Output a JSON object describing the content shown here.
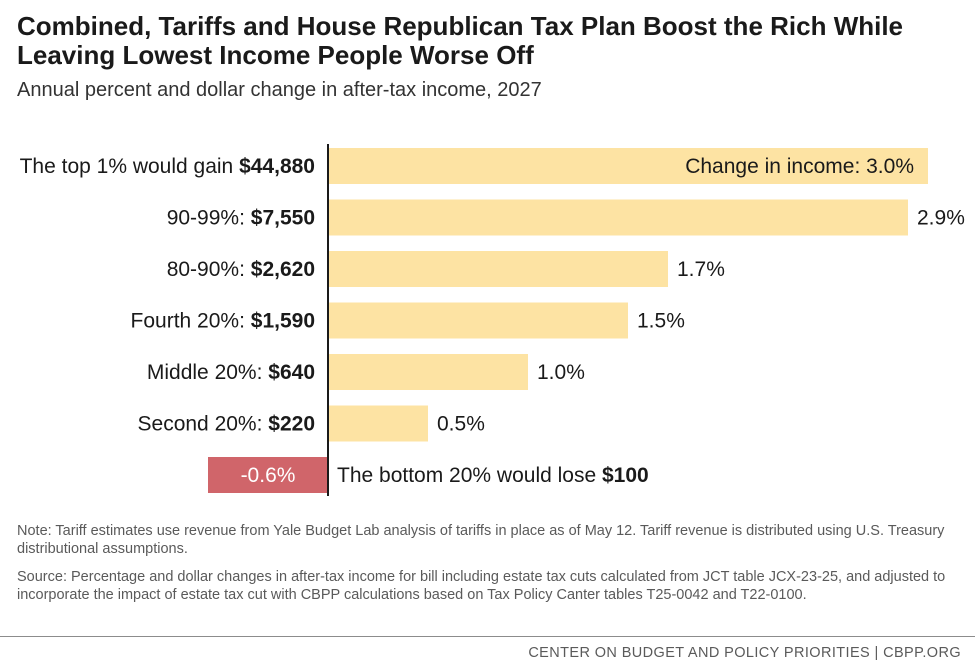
{
  "header": {
    "title": "Combined, Tariffs and House Republican Tax Plan Boost the Rich While Leaving Lowest Income People Worse Off",
    "subtitle": "Annual percent and dollar change in after-tax income, 2027"
  },
  "chart_data": {
    "type": "bar",
    "orientation": "horizontal",
    "title": "Combined, Tariffs and House Republican Tax Plan Boost the Rich While Leaving Lowest Income People Worse Off",
    "subtitle": "Annual percent and dollar change in after-tax income, 2027",
    "categories": [
      {
        "label_prefix": "The top 1% would gain ",
        "dollar": "$44,880",
        "label_position": "left"
      },
      {
        "label_prefix": "90-99%: ",
        "dollar": "$7,550",
        "label_position": "left"
      },
      {
        "label_prefix": "80-90%: ",
        "dollar": "$2,620",
        "label_position": "left"
      },
      {
        "label_prefix": "Fourth 20%: ",
        "dollar": "$1,590",
        "label_position": "left"
      },
      {
        "label_prefix": "Middle 20%: ",
        "dollar": "$640",
        "label_position": "left"
      },
      {
        "label_prefix": "Second 20%: ",
        "dollar": "$220",
        "label_position": "left"
      },
      {
        "label_prefix": "The bottom 20% would lose ",
        "dollar": "$100",
        "label_position": "right"
      }
    ],
    "values": [
      3.0,
      2.9,
      1.7,
      1.5,
      1.0,
      0.5,
      -0.6
    ],
    "value_labels": [
      "Change in income: 3.0%",
      "2.9%",
      "1.7%",
      "1.5%",
      "1.0%",
      "0.5%",
      "-0.6%"
    ],
    "units": "percent change in after-tax income",
    "xlim": [
      -0.6,
      3.0
    ],
    "grid": false,
    "legend": "none"
  },
  "colors": {
    "positive_bar": "#fde3a3",
    "negative_bar": "#d0656a",
    "axis_line": "#1a1a1a",
    "text": "#1a1a1a",
    "negative_label": "#ffffff",
    "muted_text": "#5a5a5a"
  },
  "notes": {
    "note": "Note: Tariff estimates use revenue from Yale Budget Lab analysis of tariffs in place as of May 12. Tariff revenue is distributed using U.S. Treasury distributional assumptions.",
    "source": "Source: Percentage and dollar changes in after-tax income for bill including estate tax cuts calculated from JCT table JCX-23-25, and adjusted to incorporate the impact of estate tax cut with CBPP calculations based on Tax Policy Canter tables T25-0042 and T22-0100."
  },
  "footer": {
    "attribution": "CENTER ON BUDGET AND POLICY PRIORITIES | CBPP.ORG"
  }
}
